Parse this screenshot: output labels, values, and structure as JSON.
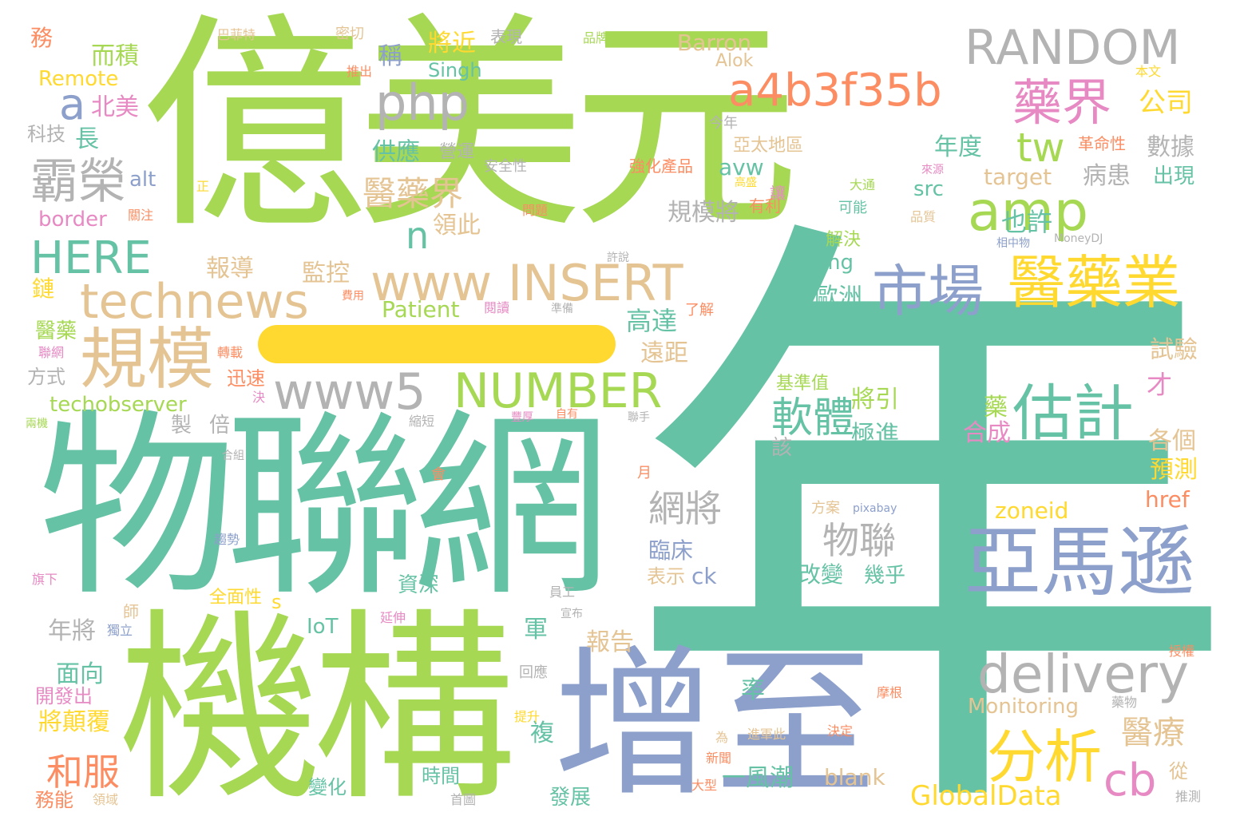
{
  "words": [
    {
      "text": "億美元",
      "color": "#a6d854"
    },
    {
      "text": "年",
      "color": "#66c2a5"
    },
    {
      "text": "物聯網",
      "color": "#66c2a5"
    },
    {
      "text": "機構",
      "color": "#a6d854"
    },
    {
      "text": "增至",
      "color": "#8da0cb"
    },
    {
      "text": "亞馬遜",
      "color": "#8da0cb"
    },
    {
      "text": "RANDOM",
      "color": "#b3b3b3"
    },
    {
      "text": "a4b3f35b",
      "color": "#fc8d62"
    },
    {
      "text": "amp",
      "color": "#a6d854"
    },
    {
      "text": "php",
      "color": "#b3b3b3"
    },
    {
      "text": "藥界",
      "color": "#e78ac3"
    },
    {
      "text": "tw",
      "color": "#a6d854"
    },
    {
      "text": "a",
      "color": "#8da0cb"
    },
    {
      "text": "霸榮",
      "color": "#b3b3b3"
    },
    {
      "text": "醫藥界",
      "color": "#e5c494"
    },
    {
      "text": "HERE",
      "color": "#66c2a5"
    },
    {
      "text": "www INSERT",
      "color": "#e5c494"
    },
    {
      "text": "n",
      "color": "#66c2a5"
    },
    {
      "text": "technews",
      "color": "#e5c494"
    },
    {
      "text": "市場",
      "color": "#8da0cb"
    },
    {
      "text": "醫藥業",
      "color": "#ffd92f"
    },
    {
      "text": "規模",
      "color": "#e5c494"
    },
    {
      "text": "www5",
      "color": "#b3b3b3"
    },
    {
      "text": "NUMBER",
      "color": "#a6d854"
    },
    {
      "text": "估計",
      "color": "#66c2a5"
    },
    {
      "text": "軟體",
      "color": "#66c2a5"
    },
    {
      "text": "delivery",
      "color": "#b3b3b3"
    },
    {
      "text": "分析",
      "color": "#ffd92f"
    },
    {
      "text": "cb",
      "color": "#e78ac3"
    },
    {
      "text": "醫療",
      "color": "#e5c494"
    },
    {
      "text": "GlobalData",
      "color": "#ffd92f"
    },
    {
      "text": "和服",
      "color": "#fc8d62"
    },
    {
      "text": "techobserver",
      "color": "#a6d854"
    },
    {
      "text": "網將",
      "color": "#b3b3b3"
    },
    {
      "text": "物聯",
      "color": "#b3b3b3"
    },
    {
      "text": "Barron",
      "color": "#e5c494"
    },
    {
      "text": "Alok",
      "color": "#e5c494"
    },
    {
      "text": "Singh",
      "color": "#66c2a5"
    },
    {
      "text": "Remote",
      "color": "#ffd92f"
    },
    {
      "text": "Patient",
      "color": "#a6d854"
    },
    {
      "text": "Monitoring",
      "color": "#e5c494"
    },
    {
      "text": "target",
      "color": "#e5c494"
    },
    {
      "text": "zoneid",
      "color": "#ffd92f"
    },
    {
      "text": "href",
      "color": "#fc8d62"
    },
    {
      "text": "blank",
      "color": "#e5c494"
    },
    {
      "text": "border",
      "color": "#e78ac3"
    },
    {
      "text": "alt",
      "color": "#8da0cb"
    },
    {
      "text": "avw",
      "color": "#66c2a5"
    },
    {
      "text": "src",
      "color": "#66c2a5"
    },
    {
      "text": "img",
      "color": "#66c2a5"
    },
    {
      "text": "IoT",
      "color": "#66c2a5"
    },
    {
      "text": "ck",
      "color": "#8da0cb"
    },
    {
      "text": "s",
      "color": "#ffd92f"
    },
    {
      "text": "公司",
      "color": "#ffd92f"
    },
    {
      "text": "數據",
      "color": "#b3b3b3"
    },
    {
      "text": "年度",
      "color": "#66c2a5"
    },
    {
      "text": "病患",
      "color": "#b3b3b3"
    },
    {
      "text": "出現",
      "color": "#66c2a5"
    },
    {
      "text": "也許",
      "color": "#66c2a5"
    },
    {
      "text": "將近",
      "color": "#ffd92f"
    },
    {
      "text": "而積",
      "color": "#a6d854"
    },
    {
      "text": "北美",
      "color": "#e78ac3"
    },
    {
      "text": "稱",
      "color": "#8da0cb"
    },
    {
      "text": "供應",
      "color": "#66c2a5"
    },
    {
      "text": "營運",
      "color": "#b3b3b3"
    },
    {
      "text": "長",
      "color": "#66c2a5"
    },
    {
      "text": "科技",
      "color": "#b3b3b3"
    },
    {
      "text": "規模將",
      "color": "#b3b3b3"
    },
    {
      "text": "領此",
      "color": "#e5c494"
    },
    {
      "text": "報導",
      "color": "#e5c494"
    },
    {
      "text": "監控",
      "color": "#e5c494"
    },
    {
      "text": "歐洲",
      "color": "#66c2a5"
    },
    {
      "text": "高達",
      "color": "#66c2a5"
    },
    {
      "text": "遠距",
      "color": "#e5c494"
    },
    {
      "text": "試驗",
      "color": "#e5c494"
    },
    {
      "text": "將引",
      "color": "#a6d854"
    },
    {
      "text": "極進",
      "color": "#66c2a5"
    },
    {
      "text": "合成",
      "color": "#e78ac3"
    },
    {
      "text": "藥",
      "color": "#a6d854"
    },
    {
      "text": "各個",
      "color": "#e5c494"
    },
    {
      "text": "預測",
      "color": "#ffd92f"
    },
    {
      "text": "才",
      "color": "#e78ac3"
    },
    {
      "text": "製",
      "color": "#b3b3b3"
    },
    {
      "text": "倍",
      "color": "#b3b3b3"
    },
    {
      "text": "該",
      "color": "#b3b3b3"
    },
    {
      "text": "基準值",
      "color": "#a6d854"
    },
    {
      "text": "臨床",
      "color": "#8da0cb"
    },
    {
      "text": "表示",
      "color": "#e5c494"
    },
    {
      "text": "改變",
      "color": "#66c2a5"
    },
    {
      "text": "幾乎",
      "color": "#66c2a5"
    },
    {
      "text": "資深",
      "color": "#66c2a5"
    },
    {
      "text": "年將",
      "color": "#b3b3b3"
    },
    {
      "text": "面向",
      "color": "#66c2a5"
    },
    {
      "text": "開發出",
      "color": "#e78ac3"
    },
    {
      "text": "將顛覆",
      "color": "#ffd92f"
    },
    {
      "text": "軍",
      "color": "#66c2a5"
    },
    {
      "text": "報告",
      "color": "#e5c494"
    },
    {
      "text": "率",
      "color": "#66c2a5"
    },
    {
      "text": "複",
      "color": "#66c2a5"
    },
    {
      "text": "時間",
      "color": "#66c2a5"
    },
    {
      "text": "變化",
      "color": "#66c2a5"
    },
    {
      "text": "一風潮",
      "color": "#66c2a5"
    },
    {
      "text": "發展",
      "color": "#66c2a5"
    },
    {
      "text": "從",
      "color": "#e5c494"
    },
    {
      "text": "全面性",
      "color": "#ffd92f"
    },
    {
      "text": "方式",
      "color": "#b3b3b3"
    },
    {
      "text": "迅速",
      "color": "#fc8d62"
    },
    {
      "text": "醫藥",
      "color": "#a6d854"
    },
    {
      "text": "鏈",
      "color": "#ffd92f"
    },
    {
      "text": "務",
      "color": "#fc8d62"
    },
    {
      "text": "務能",
      "color": "#fc8d62"
    },
    {
      "text": "亞太地區",
      "color": "#e5c494"
    },
    {
      "text": "強化產品",
      "color": "#fc8d62"
    },
    {
      "text": "解決",
      "color": "#a6d854"
    },
    {
      "text": "月",
      "color": "#fc8d62"
    },
    {
      "text": "巴菲特",
      "color": "#e5c494"
    },
    {
      "text": "密切",
      "color": "#e5c494"
    },
    {
      "text": "表現",
      "color": "#b3b3b3"
    },
    {
      "text": "品牌",
      "color": "#a6d854"
    },
    {
      "text": "推出",
      "color": "#fc8d62"
    },
    {
      "text": "本文",
      "color": "#ffd92f"
    },
    {
      "text": "今年",
      "color": "#b3b3b3"
    },
    {
      "text": "革命性",
      "color": "#fc8d62"
    },
    {
      "text": "安全性",
      "color": "#b3b3b3"
    },
    {
      "text": "讓",
      "color": "#e78ac3"
    },
    {
      "text": "有利",
      "color": "#fc8d62"
    },
    {
      "text": "問題",
      "color": "#fc8d62"
    },
    {
      "text": "可能",
      "color": "#66c2a5"
    },
    {
      "text": "大通",
      "color": "#a6d854"
    },
    {
      "text": "品質",
      "color": "#e5c494"
    },
    {
      "text": "來源",
      "color": "#e78ac3"
    },
    {
      "text": "關注",
      "color": "#fc8d62"
    },
    {
      "text": "正",
      "color": "#ffd92f"
    },
    {
      "text": "高盛",
      "color": "#ffd92f"
    },
    {
      "text": "相中物",
      "color": "#8da0cb"
    },
    {
      "text": "MoneyDJ",
      "color": "#b3b3b3"
    },
    {
      "text": "許說",
      "color": "#b3b3b3"
    },
    {
      "text": "費用",
      "color": "#fc8d62"
    },
    {
      "text": "閱讀",
      "color": "#e78ac3"
    },
    {
      "text": "準備",
      "color": "#b3b3b3"
    },
    {
      "text": "了解",
      "color": "#fc8d62"
    },
    {
      "text": "聯網",
      "color": "#e78ac3"
    },
    {
      "text": "轉載",
      "color": "#fc8d62"
    },
    {
      "text": "決",
      "color": "#e78ac3"
    },
    {
      "text": "縮短",
      "color": "#b3b3b3"
    },
    {
      "text": "豐厚",
      "color": "#e78ac3"
    },
    {
      "text": "自有",
      "color": "#fc8d62"
    },
    {
      "text": "聯手",
      "color": "#b3b3b3"
    },
    {
      "text": "兩機",
      "color": "#a6d854"
    },
    {
      "text": "合組",
      "color": "#b3b3b3"
    },
    {
      "text": "會",
      "color": "#fc8d62"
    },
    {
      "text": "方案",
      "color": "#e5c494"
    },
    {
      "text": "pixabay",
      "color": "#8da0cb"
    },
    {
      "text": "趨勢",
      "color": "#8da0cb"
    },
    {
      "text": "旗下",
      "color": "#e78ac3"
    },
    {
      "text": "員工",
      "color": "#b3b3b3"
    },
    {
      "text": "宣布",
      "color": "#b3b3b3"
    },
    {
      "text": "延伸",
      "color": "#e78ac3"
    },
    {
      "text": "獨立",
      "color": "#8da0cb"
    },
    {
      "text": "師",
      "color": "#e5c494"
    },
    {
      "text": "授權",
      "color": "#fc8d62"
    },
    {
      "text": "回應",
      "color": "#b3b3b3"
    },
    {
      "text": "摩根",
      "color": "#fc8d62"
    },
    {
      "text": "藥物",
      "color": "#b3b3b3"
    },
    {
      "text": "提升",
      "color": "#ffd92f"
    },
    {
      "text": "為",
      "color": "#e5c494"
    },
    {
      "text": "進軍此",
      "color": "#e5c494"
    },
    {
      "text": "決定",
      "color": "#fc8d62"
    },
    {
      "text": "新聞",
      "color": "#fc8d62"
    },
    {
      "text": "大型",
      "color": "#fc8d62"
    },
    {
      "text": "領域",
      "color": "#e5c494"
    },
    {
      "text": "首圖",
      "color": "#b3b3b3"
    },
    {
      "text": "推測",
      "color": "#b3b3b3"
    }
  ]
}
